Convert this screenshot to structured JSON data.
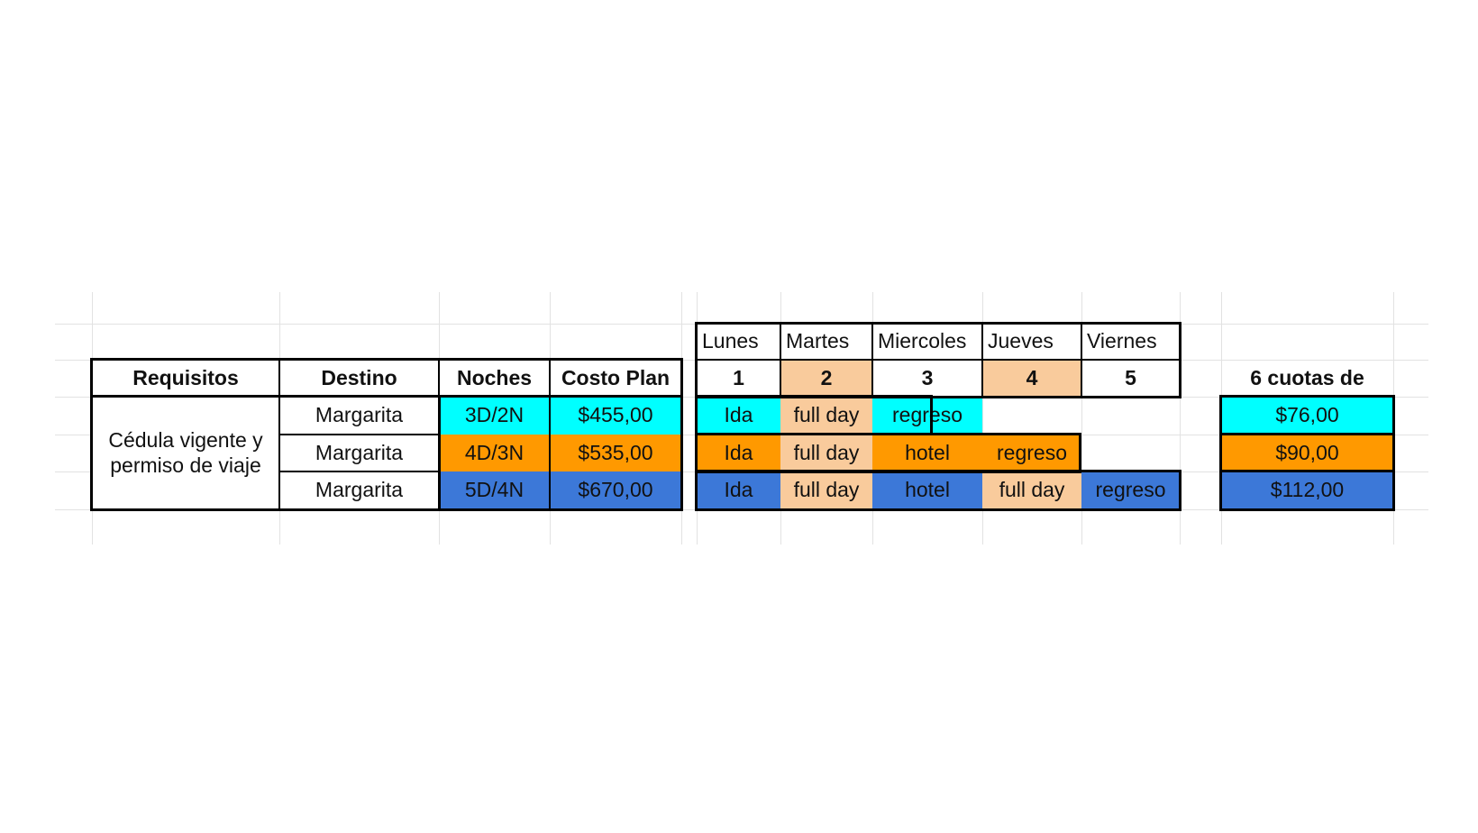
{
  "colors": {
    "plan1": "#00ffff",
    "plan2": "#ff9900",
    "plan3": "#3c78d8",
    "fullday": "#f9cb9c"
  },
  "left_table": {
    "headers": [
      "Requisitos",
      "Destino",
      "Noches",
      "Costo Plan"
    ],
    "requisitos": "Cédula vigente y permiso de viaje",
    "rows": [
      {
        "destino": "Margarita",
        "noches": "3D/2N",
        "costo": "$455,00"
      },
      {
        "destino": "Margarita",
        "noches": "4D/3N",
        "costo": "$535,00"
      },
      {
        "destino": "Margarita",
        "noches": "5D/4N",
        "costo": "$670,00"
      }
    ]
  },
  "calendar": {
    "days": [
      "Lunes",
      "Martes",
      "Miercoles",
      "Jueves",
      "Viernes"
    ],
    "numbers": [
      "1",
      "2",
      "3",
      "4",
      "5"
    ],
    "rows": [
      [
        "Ida",
        "full day",
        "regreso",
        "",
        ""
      ],
      [
        "Ida",
        "full day",
        "hotel",
        "regreso",
        ""
      ],
      [
        "Ida",
        "full day",
        "hotel",
        "full day",
        "regreso"
      ]
    ]
  },
  "cuotas": {
    "header": "6 cuotas de",
    "values": [
      "$76,00",
      "$90,00",
      "$112,00"
    ]
  }
}
